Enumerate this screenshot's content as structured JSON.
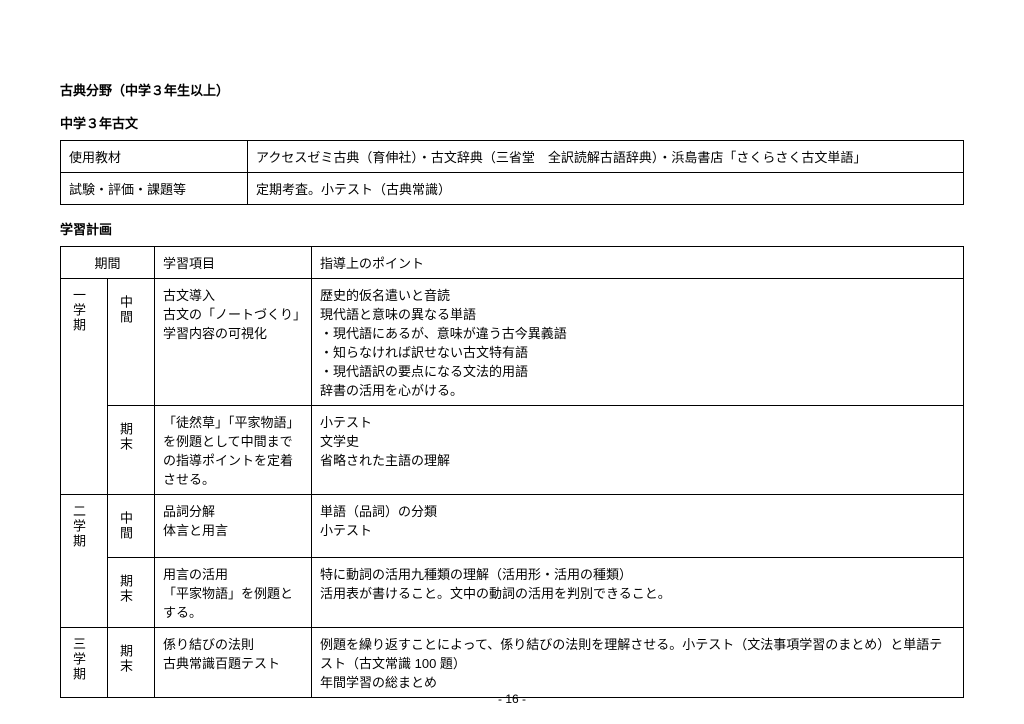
{
  "title": "古典分野（中学３年生以上）",
  "subtitle": "中学３年古文",
  "materials": {
    "rows": [
      {
        "label": "使用教材",
        "value": "アクセスゼミ古典（育伸社）・古文辞典（三省堂　全訳読解古語辞典）・浜島書店「さくらさく古文単語」"
      },
      {
        "label": "試験・評価・課題等",
        "value": "定期考査。小テスト（古典常識）"
      }
    ]
  },
  "plan_label": "学習計画",
  "plan_header": {
    "c1": "期間",
    "c2": "学習項目",
    "c3": "指導上のポイント"
  },
  "plan": [
    {
      "period": "一学期",
      "rows": [
        {
          "sub": "中間",
          "item": "古文導入\n古文の「ノートづくり」学習内容の可視化",
          "point": "歴史的仮名遣いと音読\n現代語と意味の異なる単語\n・現代語にあるが、意味が違う古今異義語\n・知らなければ訳せない古文特有語\n・現代語訳の要点になる文法的用語\n辞書の活用を心がける。"
        },
        {
          "sub": "期末",
          "item": "「徒然草」「平家物語」を例題として中間までの指導ポイントを定着させる。",
          "point": "小テスト\n文学史\n省略された主語の理解"
        }
      ]
    },
    {
      "period": "二学期",
      "rows": [
        {
          "sub": "中間",
          "item": "品詞分解\n体言と用言",
          "point": "単語（品詞）の分類\n小テスト"
        },
        {
          "sub": "期末",
          "item": "用言の活用\n「平家物語」を例題とする。",
          "point": "特に動詞の活用九種類の理解（活用形・活用の種類）\n活用表が書けること。文中の動詞の活用を判別できること。"
        }
      ]
    },
    {
      "period": "三学期",
      "rows": [
        {
          "sub": "期末",
          "item": "係り結びの法則\n古典常識百題テスト",
          "point": "例題を繰り返すことによって、係り結びの法則を理解させる。小テスト（文法事項学習のまとめ）と単語テスト（古文常識 100 題）\n年間学習の総まとめ"
        }
      ]
    }
  ],
  "page_number": "- 16 -"
}
